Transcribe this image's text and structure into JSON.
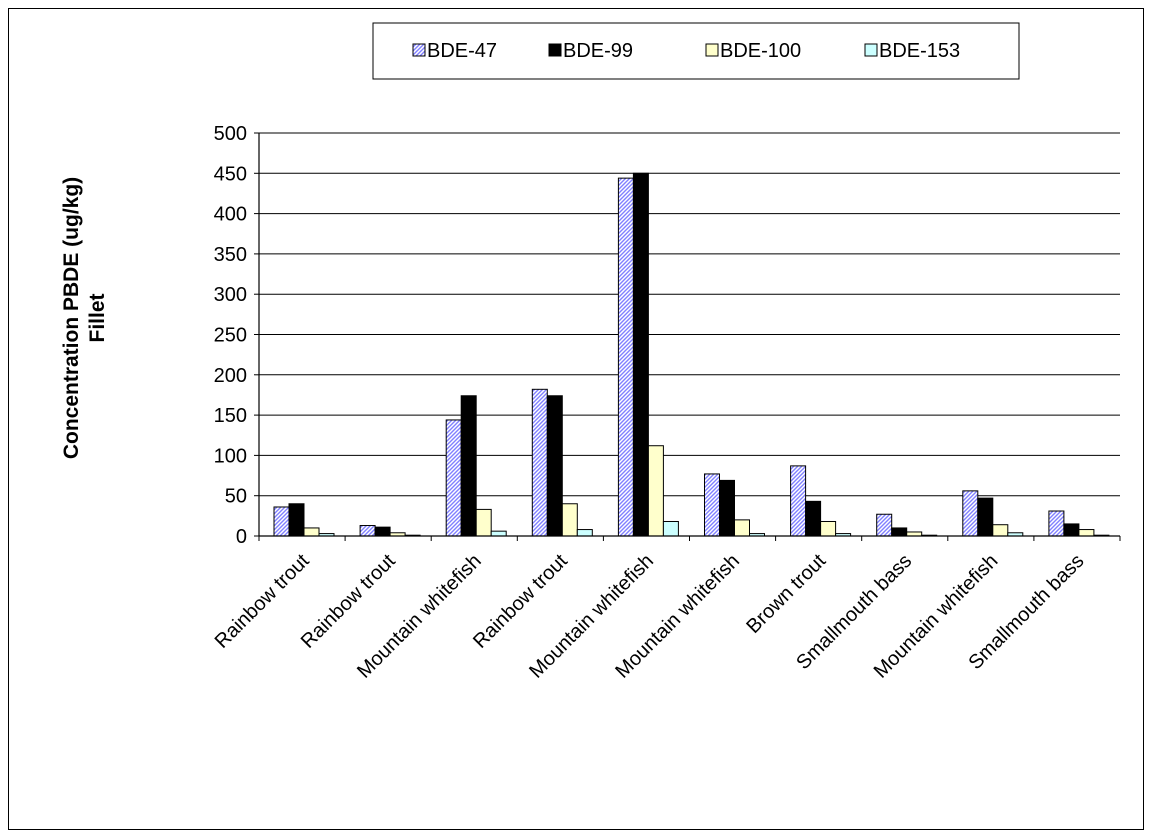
{
  "chart_data": {
    "type": "bar",
    "title": "",
    "xlabel": "",
    "ylabel_lines": [
      "Concentration PBDE (ug/kg)",
      "Fillet"
    ],
    "ylim": [
      0,
      500
    ],
    "yticks": [
      0,
      50,
      100,
      150,
      200,
      250,
      300,
      350,
      400,
      450,
      500
    ],
    "grid": "horizontal",
    "legend_position": "top",
    "categories": [
      "Rainbow trout",
      "Rainbow trout",
      "Mountain whitefish",
      "Rainbow trout",
      "Mountain whitefish",
      "Mountain whitefish",
      "Brown trout",
      "Smallmouth bass",
      "Mountain whitefish",
      "Smallmouth bass"
    ],
    "series": [
      {
        "name": "BDE-47",
        "color": "#9999ff",
        "pattern": "hatched",
        "values": [
          36,
          13,
          144,
          182,
          444,
          77,
          87,
          27,
          56,
          31
        ]
      },
      {
        "name": "BDE-99",
        "color": "#000000",
        "pattern": "solid",
        "values": [
          40,
          11,
          174,
          174,
          450,
          69,
          43,
          10,
          47,
          15
        ]
      },
      {
        "name": "BDE-100",
        "color": "#ffffcc",
        "pattern": "solid",
        "values": [
          10,
          4,
          33,
          40,
          112,
          20,
          18,
          5,
          14,
          8
        ]
      },
      {
        "name": "BDE-153",
        "color": "#ccffff",
        "pattern": "solid",
        "values": [
          3,
          1,
          6,
          8,
          18,
          3,
          3,
          1,
          4,
          1
        ]
      }
    ]
  }
}
